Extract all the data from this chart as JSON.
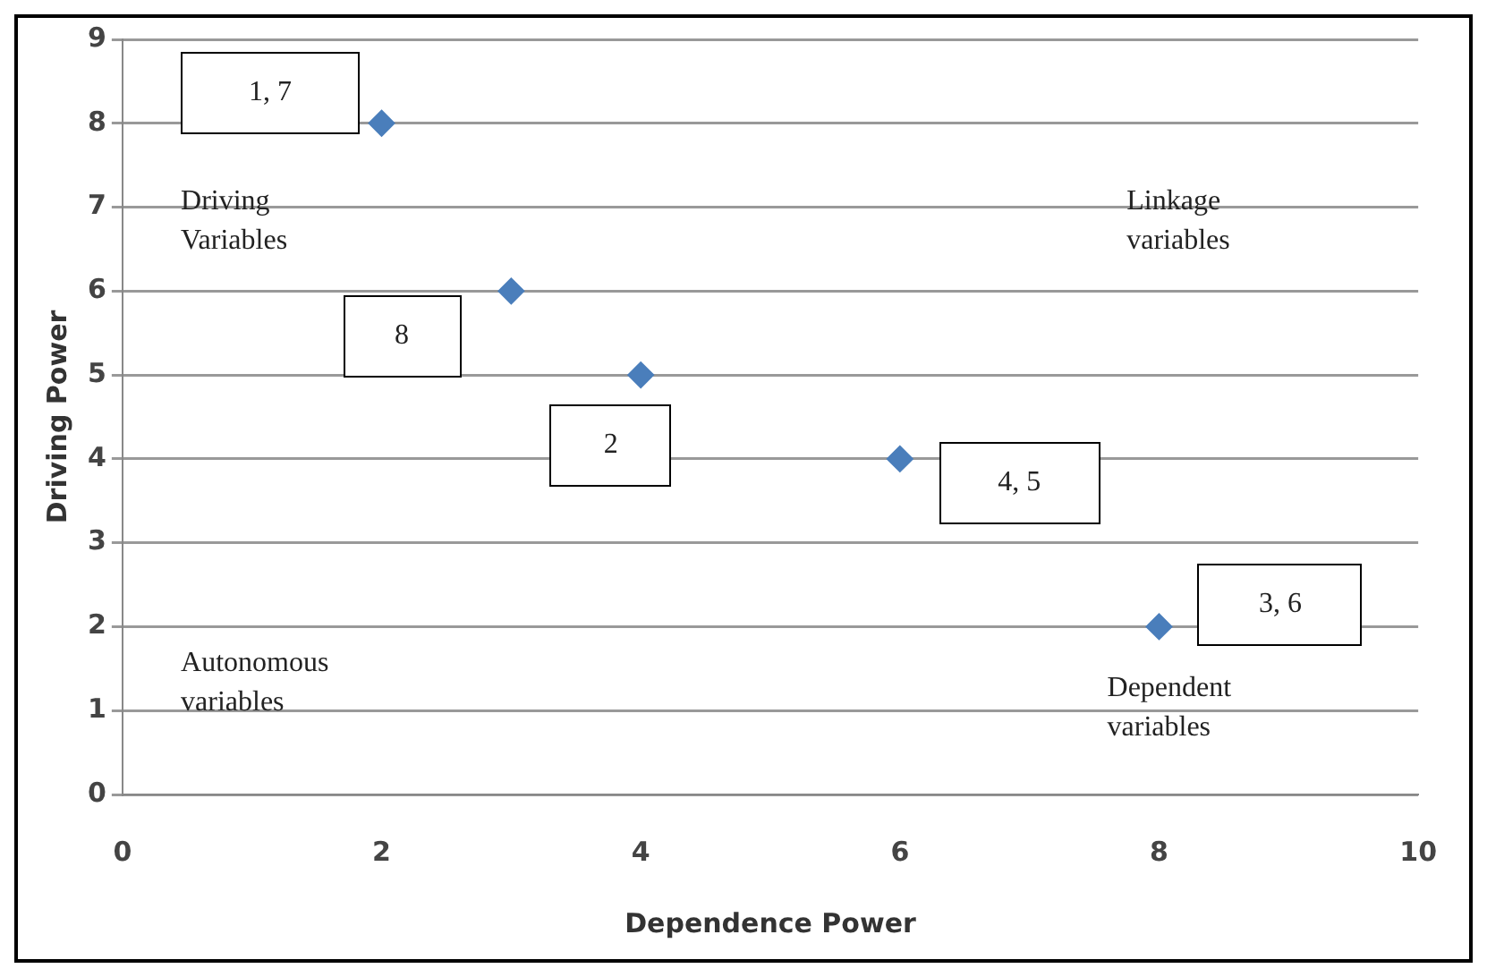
{
  "chart_data": {
    "type": "scatter",
    "xlabel": "Dependence Power",
    "ylabel": "Driving Power",
    "x": [
      2,
      3,
      4,
      6,
      8
    ],
    "values": [
      8,
      6,
      5,
      4,
      2
    ],
    "color": "#4a7ebb",
    "marker": "diamond",
    "xlim": [
      0,
      10
    ],
    "xticks": [
      0,
      2,
      4,
      6,
      8,
      10
    ],
    "ylim": [
      0,
      9
    ],
    "yticks": [
      0,
      1,
      2,
      3,
      4,
      5,
      6,
      7,
      8,
      9
    ],
    "grid": "y",
    "annotations": [
      "1, 7",
      "8",
      "2",
      "4, 5",
      "3, 6",
      "Driving Variables",
      "Linkage variables",
      "Autonomous variables",
      "Dependent variables"
    ]
  }
}
